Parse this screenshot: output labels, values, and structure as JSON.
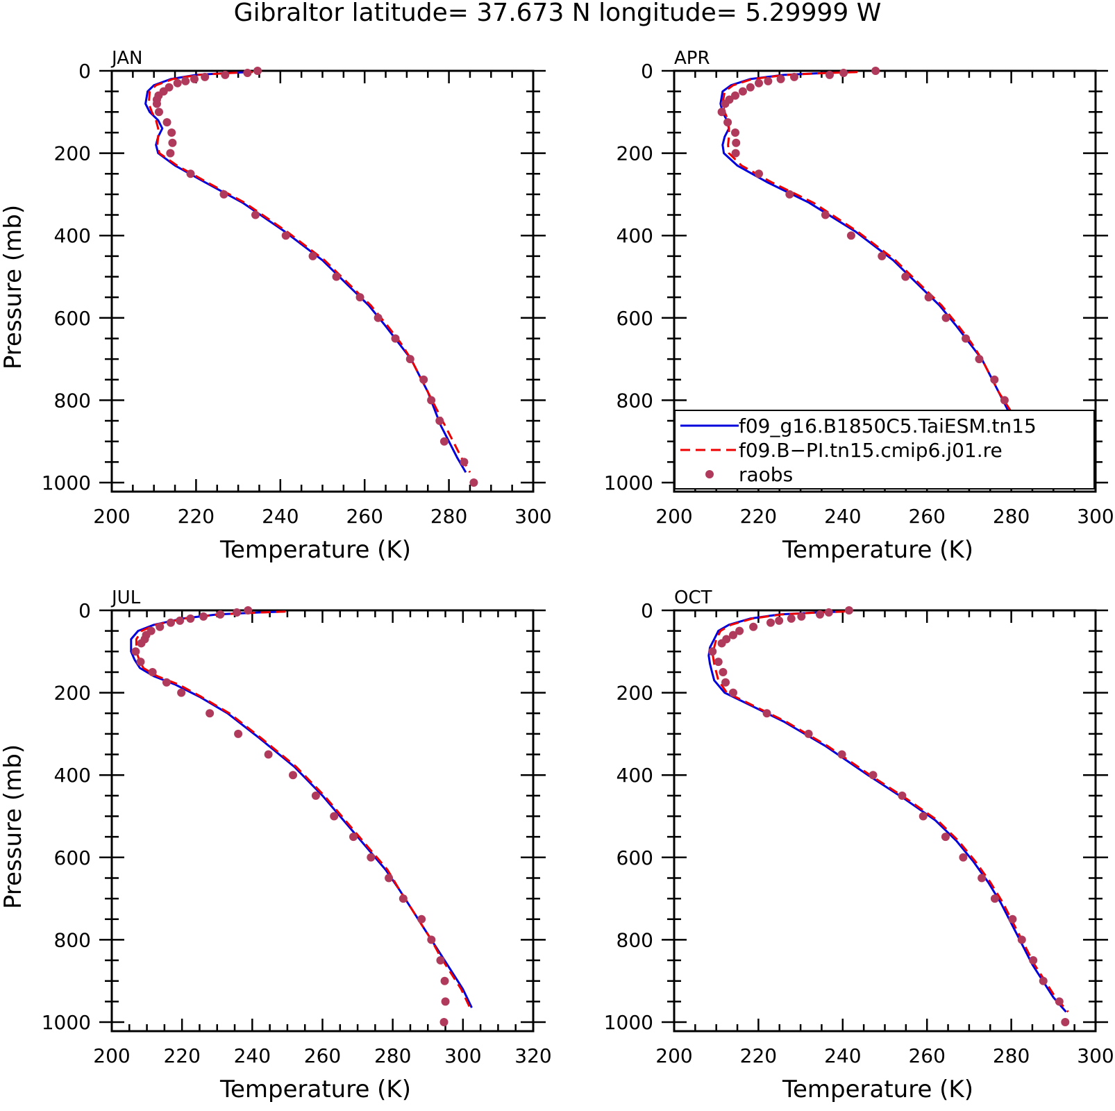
{
  "title": "Gibraltor  latitude= 37.673 N longitude= 5.29999 W",
  "colors": {
    "model1": "#0000dd",
    "model2": "#ee0000",
    "obs": "#b03a5b"
  },
  "legend": {
    "placement": "lower-right of APR panel",
    "entries": [
      {
        "label": "f09_g16.B1850C5.TaiESM.tn15",
        "style": "solid",
        "color": "#0000dd"
      },
      {
        "label": "f09.B−PI.tn15.cmip6.j01.re",
        "style": "dashed",
        "color": "#ee0000"
      },
      {
        "label": "raobs",
        "style": "marker",
        "color": "#b03a5b"
      }
    ]
  },
  "chart_data": [
    {
      "type": "line",
      "panel": "JAN",
      "xlabel": "Temperature (K)",
      "ylabel": "Pressure (mb)",
      "xlim": [
        200,
        300
      ],
      "ylim": [
        1000,
        0
      ],
      "xticks": [
        200,
        220,
        240,
        260,
        280,
        300
      ],
      "yticks": [
        0,
        200,
        400,
        600,
        800,
        1000
      ],
      "series": [
        {
          "name": "f09_g16.B1850C5.TaiESM.tn15",
          "style": "solid",
          "x": [
            233,
            228,
            220,
            214,
            210,
            208.5,
            208,
            209,
            211,
            212,
            211,
            210.5,
            211,
            215,
            222,
            231,
            241,
            250,
            256,
            261,
            265,
            268,
            271,
            273,
            275,
            276.5,
            278,
            280,
            282,
            284
          ],
          "y": [
            3,
            5,
            10,
            20,
            35,
            50,
            80,
            100,
            120,
            140,
            160,
            180,
            200,
            230,
            270,
            320,
            390,
            460,
            520,
            570,
            620,
            660,
            700,
            740,
            780,
            820,
            860,
            900,
            940,
            975
          ]
        },
        {
          "name": "f09.B−PI.tn15.cmip6.j01.re",
          "style": "dashed",
          "x": [
            233.5,
            228.5,
            220.5,
            214.5,
            210.5,
            209,
            208.8,
            209.5,
            210.5,
            211,
            211,
            210.8,
            211.3,
            215.5,
            222.5,
            231.5,
            241.5,
            250.5,
            256.5,
            261.5,
            265.5,
            268.5,
            271,
            273,
            275,
            277,
            279,
            281,
            283,
            285
          ],
          "y": [
            3,
            5,
            10,
            20,
            35,
            50,
            80,
            100,
            120,
            140,
            160,
            180,
            200,
            230,
            270,
            320,
            390,
            460,
            520,
            570,
            620,
            660,
            700,
            740,
            780,
            820,
            860,
            900,
            940,
            975
          ]
        },
        {
          "name": "raobs",
          "style": "markers",
          "x": [
            234.6,
            232.2,
            226.9,
            222.1,
            219.6,
            217.5,
            215.6,
            213.6,
            212.3,
            211.1,
            210.7,
            210.7,
            211.2,
            213.1,
            214.2,
            214.4,
            213.9,
            218.7,
            226.6,
            234.1,
            241.3,
            247.7,
            253.3,
            258.9,
            263.2,
            267.3,
            270.8,
            274.0,
            275.8,
            277.8,
            278.9,
            283.6,
            285.9
          ],
          "y": [
            0,
            5,
            10,
            15,
            20,
            25,
            30,
            40,
            50,
            60,
            70,
            80,
            100,
            125,
            150,
            175,
            200,
            250,
            300,
            350,
            400,
            450,
            500,
            550,
            600,
            650,
            700,
            750,
            800,
            850,
            900,
            950,
            1000
          ]
        }
      ]
    },
    {
      "type": "line",
      "panel": "APR",
      "xlabel": "Temperature (K)",
      "ylabel": "",
      "xlim": [
        200,
        300
      ],
      "ylim": [
        1000,
        0
      ],
      "xticks": [
        200,
        220,
        240,
        260,
        280,
        300
      ],
      "yticks": [
        0,
        200,
        400,
        600,
        800,
        1000
      ],
      "series": [
        {
          "name": "f09_g16.B1850C5.TaiESM.tn15",
          "style": "solid",
          "x": [
            243,
            236,
            226,
            218,
            213.5,
            211.5,
            211,
            211.5,
            212.5,
            213,
            212,
            211.5,
            211.8,
            215,
            222,
            232,
            243,
            252,
            258,
            263,
            267,
            270,
            273,
            275,
            277,
            279,
            281,
            283.5,
            286.5,
            289.5
          ],
          "y": [
            3,
            5,
            10,
            20,
            35,
            50,
            80,
            100,
            120,
            140,
            160,
            180,
            200,
            230,
            270,
            320,
            390,
            460,
            520,
            570,
            620,
            660,
            700,
            740,
            780,
            820,
            860,
            900,
            940,
            975
          ]
        },
        {
          "name": "f09.B−PI.tn15.cmip6.j01.re",
          "style": "dashed",
          "x": [
            243.5,
            236.5,
            226.5,
            218.5,
            214,
            212,
            211.5,
            212,
            212.8,
            213,
            213,
            212.8,
            213,
            216,
            223,
            233,
            243.5,
            252.5,
            258.5,
            263.5,
            267.5,
            270.5,
            273,
            275,
            277,
            279.5,
            282,
            284.5,
            287.5,
            290
          ],
          "y": [
            3,
            5,
            10,
            20,
            35,
            50,
            80,
            100,
            120,
            140,
            160,
            180,
            200,
            230,
            270,
            320,
            390,
            460,
            520,
            570,
            620,
            660,
            700,
            740,
            780,
            820,
            860,
            900,
            940,
            975
          ]
        },
        {
          "name": "raobs",
          "style": "markers",
          "x": [
            247.8,
            240.2,
            236.9,
            228.5,
            225.3,
            222.3,
            220.1,
            218.1,
            216.3,
            214.5,
            213.1,
            212.1,
            211.3,
            212.7,
            214.5,
            214.7,
            214.6,
            220.1,
            227.4,
            235.9,
            242.0,
            249.3,
            254.9,
            260.4,
            264.5,
            269.2,
            272.4,
            276.0,
            278.4,
            279.8,
            283.1,
            287.8,
            289.1
          ],
          "y": [
            0,
            5,
            10,
            15,
            20,
            25,
            30,
            40,
            50,
            60,
            70,
            80,
            100,
            125,
            150,
            175,
            200,
            250,
            300,
            350,
            400,
            450,
            500,
            550,
            600,
            650,
            700,
            750,
            800,
            850,
            900,
            950,
            1000
          ]
        }
      ]
    },
    {
      "type": "line",
      "panel": "JUL",
      "xlabel": "Temperature (K)",
      "ylabel": "Pressure (mb)",
      "xlim": [
        200,
        320
      ],
      "ylim": [
        1000,
        0
      ],
      "xticks": [
        200,
        220,
        240,
        260,
        280,
        300,
        320
      ],
      "yticks": [
        0,
        200,
        400,
        600,
        800,
        1000
      ],
      "series": [
        {
          "name": "f09_g16.B1850C5.TaiESM.tn15",
          "style": "solid",
          "x": [
            249,
            242,
            230,
            220,
            212,
            207.5,
            205.5,
            205.5,
            206.5,
            208,
            212,
            218,
            225,
            233,
            242,
            252,
            260,
            265,
            270,
            274,
            278,
            282,
            285,
            288,
            291,
            294,
            297,
            300,
            302.5
          ],
          "y": [
            3,
            5,
            10,
            20,
            35,
            50,
            70,
            100,
            120,
            140,
            160,
            180,
            210,
            250,
            310,
            380,
            450,
            500,
            550,
            590,
            630,
            680,
            720,
            760,
            800,
            840,
            880,
            920,
            965
          ]
        },
        {
          "name": "f09.B−PI.tn15.cmip6.j01.re",
          "style": "dashed",
          "x": [
            249.5,
            242.5,
            230.5,
            220.5,
            212.5,
            208.5,
            207,
            207,
            207.8,
            209,
            213,
            219,
            225.5,
            233.5,
            242.5,
            252.5,
            260.5,
            265.5,
            270.5,
            274.5,
            278.5,
            282,
            285,
            288,
            291,
            293.5,
            296.5,
            299.5,
            302
          ],
          "y": [
            3,
            5,
            10,
            20,
            35,
            50,
            70,
            100,
            120,
            140,
            160,
            180,
            210,
            250,
            310,
            380,
            450,
            500,
            550,
            590,
            630,
            680,
            720,
            760,
            800,
            840,
            880,
            920,
            965
          ]
        },
        {
          "name": "raobs",
          "style": "markers",
          "x": [
            238.8,
            235.6,
            230.9,
            226.1,
            222.4,
            219.4,
            216.8,
            213.7,
            211.2,
            209.8,
            209.4,
            208.4,
            206.8,
            208.2,
            211.6,
            215.6,
            219.8,
            227.9,
            236.0,
            244.6,
            251.6,
            258.1,
            263.3,
            268.8,
            273.8,
            278.9,
            283.0,
            288.2,
            291.0,
            293.6,
            294.8,
            295.0,
            294.6
          ],
          "y": [
            0,
            5,
            10,
            15,
            20,
            25,
            30,
            40,
            50,
            60,
            70,
            80,
            100,
            125,
            150,
            175,
            200,
            250,
            300,
            350,
            400,
            450,
            500,
            550,
            600,
            650,
            700,
            750,
            800,
            850,
            900,
            950,
            1000
          ]
        }
      ]
    },
    {
      "type": "line",
      "panel": "OCT",
      "xlabel": "Temperature (K)",
      "ylabel": "",
      "xlim": [
        200,
        300
      ],
      "ylim": [
        1000,
        0
      ],
      "xticks": [
        200,
        220,
        240,
        260,
        280,
        300
      ],
      "yticks": [
        0,
        200,
        400,
        600,
        800,
        1000
      ],
      "series": [
        {
          "name": "f09_g16.B1850C5.TaiESM.tn15",
          "style": "solid",
          "x": [
            240,
            234,
            225,
            218,
            213,
            210.5,
            209.5,
            208.5,
            208.2,
            208.5,
            209,
            209.5,
            212,
            218,
            226,
            236,
            246,
            255,
            262,
            267,
            271,
            274.5,
            277.5,
            280,
            282.5,
            285,
            287.5,
            290,
            293
          ],
          "y": [
            3,
            5,
            10,
            20,
            35,
            50,
            70,
            90,
            110,
            130,
            150,
            170,
            200,
            230,
            270,
            330,
            400,
            460,
            510,
            560,
            610,
            660,
            710,
            760,
            810,
            860,
            900,
            940,
            975
          ]
        },
        {
          "name": "f09.B−PI.tn15.cmip6.j01.re",
          "style": "dashed",
          "x": [
            240.5,
            234.5,
            225.5,
            218.5,
            213.5,
            211,
            210,
            209.5,
            209.2,
            209.5,
            210,
            210.5,
            212.5,
            218.5,
            226.5,
            236.5,
            246.5,
            255.5,
            262.5,
            267.5,
            271.5,
            275,
            278,
            280.5,
            283,
            285.5,
            288,
            290.5,
            293.5
          ],
          "y": [
            3,
            5,
            10,
            20,
            35,
            50,
            70,
            90,
            110,
            130,
            150,
            170,
            200,
            230,
            270,
            330,
            400,
            460,
            510,
            560,
            610,
            660,
            710,
            760,
            810,
            860,
            900,
            940,
            975
          ]
        },
        {
          "name": "raobs",
          "style": "markers",
          "x": [
            241.5,
            236.7,
            234.6,
            230.2,
            227.8,
            224.9,
            222.9,
            218.8,
            215.5,
            214.0,
            212.4,
            211.3,
            209.1,
            210.5,
            211.6,
            212.2,
            214.0,
            222.0,
            231.9,
            239.8,
            247.2,
            254.1,
            259.1,
            264.4,
            268.6,
            273.0,
            276.1,
            280.3,
            282.5,
            285.2,
            287.6,
            291.4,
            292.8
          ],
          "y": [
            0,
            5,
            10,
            15,
            20,
            25,
            30,
            40,
            50,
            60,
            70,
            80,
            100,
            125,
            150,
            175,
            200,
            250,
            300,
            350,
            400,
            450,
            500,
            550,
            600,
            650,
            700,
            750,
            800,
            850,
            900,
            950,
            1000
          ]
        }
      ]
    }
  ]
}
